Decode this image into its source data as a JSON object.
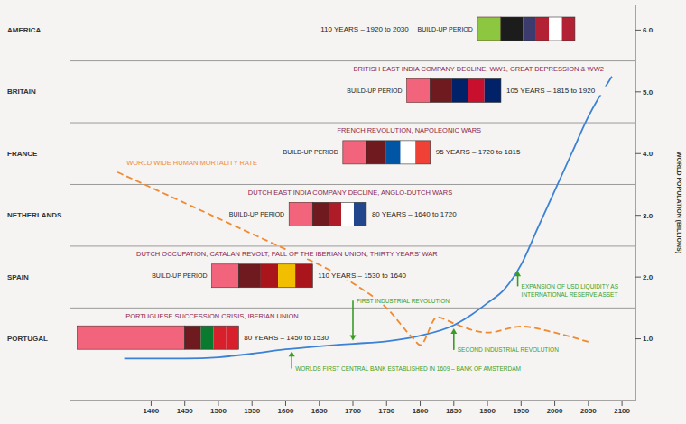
{
  "chart_data": {
    "type": "line",
    "y_label": "WORLD POPULATION (BILLIONS)",
    "xlim": [
      1280,
      2120
    ],
    "xticks": [
      1400,
      1450,
      1500,
      1550,
      1600,
      1650,
      1700,
      1750,
      1800,
      1850,
      1900,
      1950,
      2000,
      2050,
      2100
    ],
    "ylim": [
      0,
      6.4
    ],
    "yticks": [
      {
        "value": 1,
        "label": "1.0"
      },
      {
        "value": 2,
        "label": "2.0"
      },
      {
        "value": 3,
        "label": "3.0"
      },
      {
        "value": 4,
        "label": "4.0"
      },
      {
        "value": 5,
        "label": "5.0"
      },
      {
        "value": 6,
        "label": "6.0"
      }
    ],
    "series": [
      {
        "color": "#3b82d6",
        "line_style": "solid",
        "x": [
          1360,
          1400,
          1450,
          1500,
          1550,
          1600,
          1650,
          1700,
          1750,
          1800,
          1850,
          1875,
          1900,
          1925,
          1950,
          1975,
          2000,
          2025,
          2050,
          2085
        ],
        "values": [
          0.68,
          0.68,
          0.68,
          0.7,
          0.76,
          0.83,
          0.88,
          0.92,
          0.96,
          1.05,
          1.22,
          1.38,
          1.58,
          1.8,
          2.2,
          2.8,
          3.4,
          4.0,
          4.6,
          5.25
        ]
      },
      {
        "name": "WORLD WIDE HUMAN MORTALITY RATE",
        "color": "#f08a30",
        "line_style": "dashed",
        "x": [
          1350,
          1400,
          1450,
          1500,
          1550,
          1600,
          1650,
          1700,
          1750,
          1790,
          1800,
          1825,
          1850,
          1875,
          1900,
          1950,
          2000,
          2050
        ],
        "values": [
          3.7,
          3.45,
          3.2,
          2.95,
          2.7,
          2.45,
          2.2,
          1.9,
          1.5,
          1.0,
          0.9,
          1.35,
          1.25,
          1.15,
          1.1,
          1.2,
          1.1,
          0.95
        ]
      }
    ],
    "countries": [
      {
        "name": "PORTUGAL",
        "events": "PORTUGUESE SUCCESSION CRISIS, IBERIAN UNION",
        "build_up": {
          "range": [
            1290,
            1450
          ],
          "color": "#f2637c"
        },
        "dominance": {
          "range": [
            1450,
            1530
          ],
          "label": "80 YEARS – 1450 to 1530",
          "colors": [
            "#6e1a1e",
            "#0a7a2f",
            "#d8202c",
            "#d8202c"
          ]
        }
      },
      {
        "name": "SPAIN",
        "events": "DUTCH OCCUPATION, CATALAN REVOLT, FALL OF THE IBERIAN UNION, THIRTY YEARS' WAR",
        "build_up": {
          "label": "BUILD-UP PERIOD",
          "range": [
            1490,
            1530
          ],
          "color": "#f2637c"
        },
        "dominance": {
          "range": [
            1530,
            1640
          ],
          "label": "110 YEARS – 1530 to 1640",
          "colors": [
            "#6e1a1e",
            "#aa151b",
            "#f1bf00",
            "#aa151b"
          ]
        }
      },
      {
        "name": "NETHERLANDS",
        "events": "DUTCH EAST INDIA COMPANY DECLINE, ANGLO-DUTCH WARS",
        "build_up": {
          "label": "BUILD-UP PERIOD",
          "range": [
            1605,
            1640
          ],
          "color": "#f2637c"
        },
        "dominance": {
          "range": [
            1640,
            1720
          ],
          "label": "80 YEARS – 1640 to 1720",
          "colors": [
            "#6e1a1e",
            "#ae1c28",
            "#ffffff",
            "#21468b"
          ]
        }
      },
      {
        "name": "FRANCE",
        "events": "FRENCH REVOLUTION, NAPOLEONIC WARS",
        "build_up": {
          "label": "BUILD-UP PERIOD",
          "range": [
            1685,
            1720
          ],
          "color": "#f2637c"
        },
        "dominance": {
          "range": [
            1720,
            1815
          ],
          "label": "95 YEARS – 1720 to 1815",
          "colors": [
            "#6e1a1e",
            "#0055a4",
            "#ffffff",
            "#ef4135"
          ]
        }
      },
      {
        "name": "BRITAIN",
        "events": "BRITISH EAST INDIA COMPANY DECLINE, WW1, GREAT DEPRESSION & WW2",
        "build_up": {
          "label": "BUILD-UP PERIOD",
          "range": [
            1780,
            1815
          ],
          "color": "#f2637c"
        },
        "dominance": {
          "range": [
            1815,
            1920
          ],
          "label": "105 YEARS – 1815 to 1920",
          "colors": [
            "#6e1a1e",
            "#012169",
            "#c8102e",
            "#012169"
          ]
        }
      },
      {
        "name": "AMERICA",
        "build_up": {
          "label": "BUILD-UP PERIOD",
          "range": [
            1885,
            1920
          ],
          "color": "#8dc63f"
        },
        "dominance": {
          "range": [
            1920,
            2030
          ],
          "label": "110 YEARS – 1920 to 2030",
          "colors": [
            "#1c1c1c",
            "#3c3b6e",
            "#b22234",
            "#ffffff",
            "#b22234"
          ]
        }
      }
    ],
    "annotations": [
      {
        "text": "FIRST INDUSTRIAL REVOLUTION",
        "x": 1700,
        "y_from": 1.62,
        "y_to": 0.97,
        "color": "#3a9d23"
      },
      {
        "text": "SECOND INDUSTRIAL REVOLUTION",
        "x": 1850,
        "y_from": 0.82,
        "y_to": 1.17,
        "color": "#3a9d23"
      },
      {
        "text": "WORLDS FIRST CENTRAL BANK ESTABLISHED IN 1609 – BANK OF AMSTERDAM",
        "x": 1609,
        "y_from": 0.52,
        "y_to": 0.8,
        "color": "#3a9d23"
      },
      {
        "text": "EXPANSION OF USD LIQUIDITY AS INTERNATIONAL RESERVE ASSET",
        "x": 1945,
        "y_from": 1.85,
        "y_to": 2.1,
        "color": "#3a9d23"
      }
    ]
  }
}
